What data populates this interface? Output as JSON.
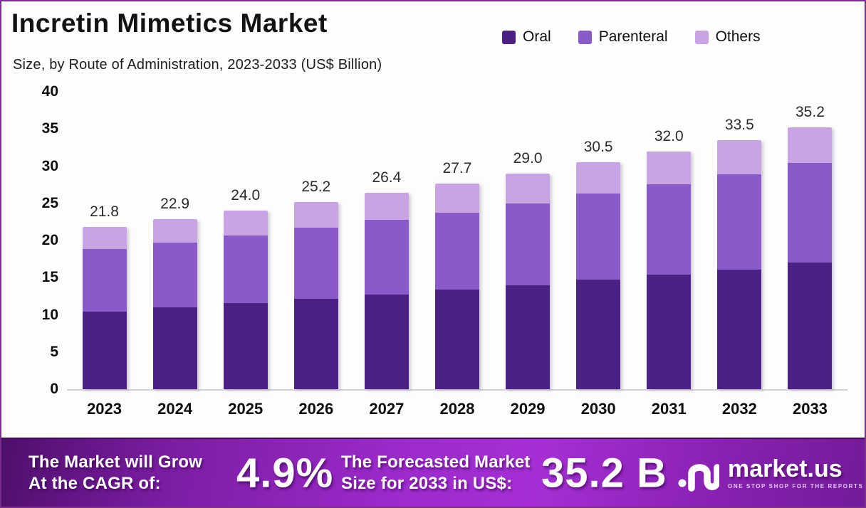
{
  "header": {
    "title": "Incretin Mimetics Market",
    "subtitle": "Size, by Route of Administration, 2023-2033 (US$ Billion)"
  },
  "legend": [
    {
      "label": "Oral",
      "color": "#4b2183"
    },
    {
      "label": "Parenteral",
      "color": "#8a5bc8"
    },
    {
      "label": "Others",
      "color": "#c9a4e2"
    }
  ],
  "chart_data": {
    "type": "bar",
    "stacked": true,
    "title": "Incretin Mimetics Market Size, by Route of Administration, 2023-2033 (US$ Billion)",
    "categories": [
      "2023",
      "2024",
      "2025",
      "2026",
      "2027",
      "2028",
      "2029",
      "2030",
      "2031",
      "2032",
      "2033"
    ],
    "series": [
      {
        "name": "Oral",
        "color": "#4b2183",
        "values": [
          10.4,
          11.0,
          11.6,
          12.2,
          12.7,
          13.4,
          14.0,
          14.7,
          15.4,
          16.1,
          17.0
        ]
      },
      {
        "name": "Parenteral",
        "color": "#8a5bc8",
        "values": [
          8.5,
          8.7,
          9.1,
          9.5,
          10.1,
          10.3,
          11.0,
          11.6,
          12.2,
          12.8,
          13.4
        ]
      },
      {
        "name": "Others",
        "color": "#c9a4e2",
        "values": [
          2.9,
          3.2,
          3.3,
          3.5,
          3.6,
          4.0,
          4.0,
          4.2,
          4.4,
          4.6,
          4.8
        ]
      }
    ],
    "totals": [
      "21.8",
      "22.9",
      "24.0",
      "25.2",
      "26.4",
      "27.7",
      "29.0",
      "30.5",
      "32.0",
      "33.5",
      "35.2"
    ],
    "ylim": [
      0,
      40
    ],
    "ytick_step": 5,
    "yticks": [
      0,
      5,
      10,
      15,
      20,
      25,
      30,
      35,
      40
    ],
    "grid": false,
    "legend_position": "top-right"
  },
  "banner": {
    "cagr_label_line1": "The Market will Grow",
    "cagr_label_line2": "At the CAGR of:",
    "cagr_value": "4.9%",
    "forecast_label_line1": "The Forecasted Market",
    "forecast_label_line2": "Size for 2033 in US$:",
    "forecast_value": "35.2 B",
    "brand_name": "market.us",
    "brand_tagline": "ONE STOP SHOP FOR THE REPORTS"
  },
  "colors": {
    "frame_border": "#7b2e8e",
    "banner_dark": "#4e0f6b",
    "banner_bright": "#a52fd4",
    "axis_line": "#d6d2dc",
    "text_dark": "#121212"
  }
}
